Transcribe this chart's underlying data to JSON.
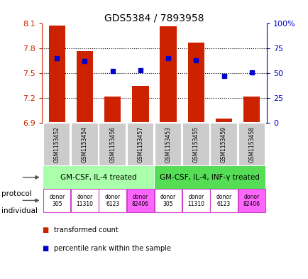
{
  "title": "GDS5384 / 7893958",
  "samples": [
    "GSM1153452",
    "GSM1153454",
    "GSM1153456",
    "GSM1153457",
    "GSM1153453",
    "GSM1153455",
    "GSM1153459",
    "GSM1153458"
  ],
  "bar_values": [
    8.08,
    7.77,
    7.22,
    7.35,
    8.07,
    7.87,
    6.95,
    7.22
  ],
  "bar_bottom": 6.9,
  "percentile_values": [
    65,
    62,
    52,
    53,
    65,
    63,
    47,
    51
  ],
  "ymin": 6.9,
  "ymax": 8.1,
  "yticks": [
    6.9,
    7.2,
    7.5,
    7.8,
    8.1
  ],
  "right_yticks": [
    0,
    25,
    50,
    75,
    100
  ],
  "right_ytick_labels": [
    "0",
    "25",
    "50",
    "75",
    "100%"
  ],
  "bar_color": "#cc2200",
  "dot_color": "#0000cc",
  "left_axis_color": "#cc2200",
  "right_axis_color": "#0000cc",
  "protocol_groups": [
    {
      "label": "GM-CSF, IL-4 treated",
      "start": 0,
      "end": 3,
      "color": "#aaffaa"
    },
    {
      "label": "GM-CSF, IL-4, INF-γ treated",
      "start": 4,
      "end": 7,
      "color": "#55dd55"
    }
  ],
  "individuals": [
    {
      "label": "donor\n305",
      "color": "#ffffff"
    },
    {
      "label": "donor\n11310",
      "color": "#ffffff"
    },
    {
      "label": "donor\n6123",
      "color": "#ffffff"
    },
    {
      "label": "donor\n82406",
      "color": "#ff66ff"
    },
    {
      "label": "donor\n305",
      "color": "#ffffff"
    },
    {
      "label": "donor\n11310",
      "color": "#ffffff"
    },
    {
      "label": "donor\n6123",
      "color": "#ffffff"
    },
    {
      "label": "donor\n82406",
      "color": "#ff66ff"
    }
  ],
  "sample_bg_color": "#cccccc",
  "sample_border_color": "#ffffff",
  "individual_border_color": "#cc44cc",
  "legend_items": [
    {
      "label": "transformed count",
      "color": "#cc2200"
    },
    {
      "label": "percentile rank within the sample",
      "color": "#0000cc"
    }
  ],
  "bar_width": 0.6,
  "n_samples": 8
}
